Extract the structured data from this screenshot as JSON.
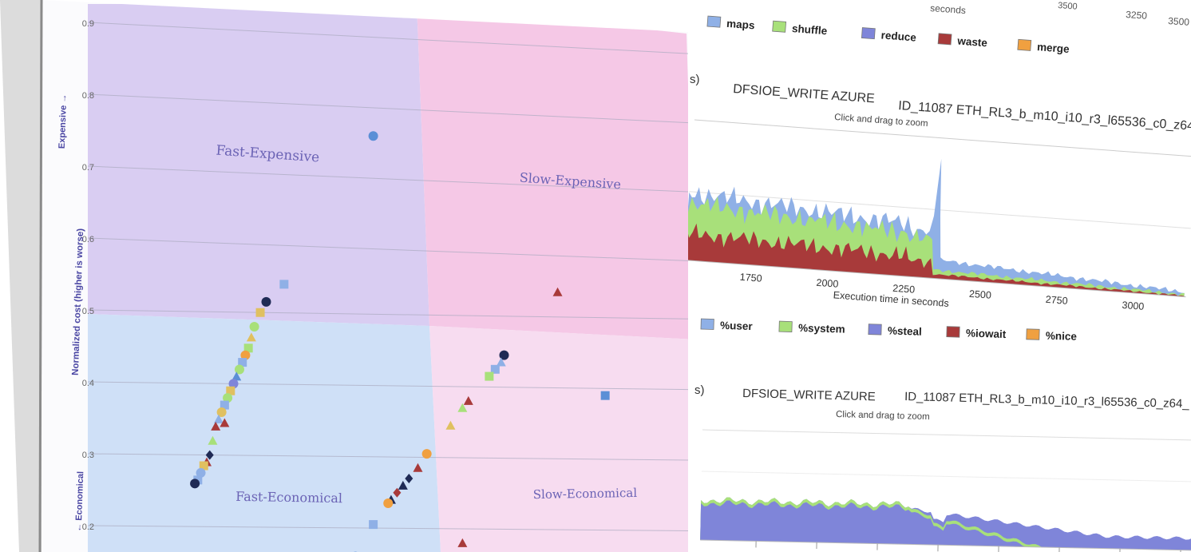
{
  "colors": {
    "fast_expensive_bg": "#d9cdf2",
    "slow_expensive_bg": "#f5c8e6",
    "fast_economical_bg": "#cfe0f7",
    "slow_economical_bg": "#f7dcf0",
    "quadrant_label": "#6b63b5",
    "axis_label": "#4a46a3",
    "maps": "#8fb0e6",
    "shuffle": "#a8e07a",
    "reduce": "#7f85d9",
    "waste": "#a83a3a",
    "merge": "#f0a040",
    "user": "#8fb0e6",
    "system": "#a8e07a",
    "steal": "#7f85d9",
    "iowait": "#a83a3a",
    "nice": "#f0a040"
  },
  "chart_data": [
    {
      "type": "scatter",
      "title": "",
      "ylabel": "← Economical   Normalized cost (higher is worse)   Expensive →",
      "ylabel_economical": "← Economical",
      "ylabel_main": "Normalized cost (higher is worse)",
      "ylabel_expensive": "Expensive →",
      "ylim": [
        0.15,
        0.93
      ],
      "yticks": [
        "0.2",
        "0.3",
        "0.4",
        "0.5",
        "0.6",
        "0.7",
        "0.8",
        "0.9"
      ],
      "quadrants": {
        "fast_expensive": "Fast-Expensive",
        "slow_expensive": "Slow-Expensive",
        "fast_economical": "Fast-Economical",
        "slow_economical": "Slow-Economical"
      },
      "points": [
        {
          "x": 0.48,
          "y": 0.76,
          "shape": "circle",
          "color": "#5b8fd6"
        },
        {
          "x": 0.33,
          "y": 0.54,
          "shape": "square",
          "color": "#8fb0e6"
        },
        {
          "x": 0.3,
          "y": 0.515,
          "shape": "circle",
          "color": "#1f2a55"
        },
        {
          "x": 0.29,
          "y": 0.5,
          "shape": "square",
          "color": "#e0c060"
        },
        {
          "x": 0.28,
          "y": 0.48,
          "shape": "circle",
          "color": "#a8e07a"
        },
        {
          "x": 0.275,
          "y": 0.465,
          "shape": "triangle",
          "color": "#e0c060"
        },
        {
          "x": 0.27,
          "y": 0.45,
          "shape": "square",
          "color": "#a8e07a"
        },
        {
          "x": 0.265,
          "y": 0.44,
          "shape": "circle",
          "color": "#f0a040"
        },
        {
          "x": 0.26,
          "y": 0.43,
          "shape": "square",
          "color": "#8fb0e6"
        },
        {
          "x": 0.255,
          "y": 0.42,
          "shape": "circle",
          "color": "#a8e07a"
        },
        {
          "x": 0.25,
          "y": 0.41,
          "shape": "triangle",
          "color": "#5b8fd6"
        },
        {
          "x": 0.245,
          "y": 0.4,
          "shape": "circle",
          "color": "#7f85d9"
        },
        {
          "x": 0.24,
          "y": 0.39,
          "shape": "square",
          "color": "#e0c060"
        },
        {
          "x": 0.235,
          "y": 0.38,
          "shape": "circle",
          "color": "#a8e07a"
        },
        {
          "x": 0.23,
          "y": 0.37,
          "shape": "square",
          "color": "#8fb0e6"
        },
        {
          "x": 0.225,
          "y": 0.36,
          "shape": "circle",
          "color": "#e0c060"
        },
        {
          "x": 0.22,
          "y": 0.35,
          "shape": "triangle",
          "color": "#8fb0e6"
        },
        {
          "x": 0.23,
          "y": 0.345,
          "shape": "triangle",
          "color": "#a83a3a"
        },
        {
          "x": 0.215,
          "y": 0.34,
          "shape": "triangle",
          "color": "#a83a3a"
        },
        {
          "x": 0.21,
          "y": 0.32,
          "shape": "triangle",
          "color": "#a8e07a"
        },
        {
          "x": 0.205,
          "y": 0.3,
          "shape": "diamond",
          "color": "#1f2a55"
        },
        {
          "x": 0.2,
          "y": 0.29,
          "shape": "triangle",
          "color": "#a83a3a"
        },
        {
          "x": 0.195,
          "y": 0.285,
          "shape": "square",
          "color": "#e0c060"
        },
        {
          "x": 0.19,
          "y": 0.275,
          "shape": "circle",
          "color": "#8fb0e6"
        },
        {
          "x": 0.185,
          "y": 0.265,
          "shape": "square",
          "color": "#8fb0e6"
        },
        {
          "x": 0.18,
          "y": 0.26,
          "shape": "circle",
          "color": "#1f2a55"
        },
        {
          "x": 0.79,
          "y": 0.535,
          "shape": "triangle",
          "color": "#a83a3a"
        },
        {
          "x": 0.7,
          "y": 0.445,
          "shape": "circle",
          "color": "#1f2a55"
        },
        {
          "x": 0.695,
          "y": 0.435,
          "shape": "triangle",
          "color": "#8fb0e6"
        },
        {
          "x": 0.685,
          "y": 0.425,
          "shape": "square",
          "color": "#8fb0e6"
        },
        {
          "x": 0.675,
          "y": 0.415,
          "shape": "square",
          "color": "#a8e07a"
        },
        {
          "x": 0.64,
          "y": 0.38,
          "shape": "triangle",
          "color": "#a83a3a"
        },
        {
          "x": 0.63,
          "y": 0.37,
          "shape": "triangle",
          "color": "#a8e07a"
        },
        {
          "x": 0.61,
          "y": 0.345,
          "shape": "triangle",
          "color": "#e0c060"
        },
        {
          "x": 0.57,
          "y": 0.305,
          "shape": "circle",
          "color": "#f0a040"
        },
        {
          "x": 0.555,
          "y": 0.285,
          "shape": "triangle",
          "color": "#a83a3a"
        },
        {
          "x": 0.54,
          "y": 0.27,
          "shape": "diamond",
          "color": "#1f2a55"
        },
        {
          "x": 0.53,
          "y": 0.26,
          "shape": "triangle",
          "color": "#1f2a55"
        },
        {
          "x": 0.52,
          "y": 0.25,
          "shape": "diamond",
          "color": "#a83a3a"
        },
        {
          "x": 0.51,
          "y": 0.24,
          "shape": "triangle",
          "color": "#1f2a55"
        },
        {
          "x": 0.505,
          "y": 0.235,
          "shape": "circle",
          "color": "#f0a040"
        },
        {
          "x": 0.48,
          "y": 0.205,
          "shape": "square",
          "color": "#8fb0e6"
        },
        {
          "x": 0.63,
          "y": 0.18,
          "shape": "triangle",
          "color": "#a83a3a"
        },
        {
          "x": 0.45,
          "y": 0.16,
          "shape": "circle",
          "color": "#5b8fd6"
        },
        {
          "x": 0.87,
          "y": 0.39,
          "shape": "square",
          "color": "#5b8fd6"
        }
      ]
    },
    {
      "type": "area",
      "title": "DFSIOE_WRITE AZURE",
      "run_id": "ID_11087 ETH_RL3_b_m10_i10_r3_l65536_c0_z64_",
      "subtitle": "Click and drag to zoom",
      "xlabel": "Execution time in seconds",
      "xlabel_top_fragment": "seconds",
      "xticks": [
        "1750",
        "2000",
        "2250",
        "2500",
        "2750",
        "3000",
        "3250",
        "3500"
      ],
      "top_ticks": [
        "3250",
        "3500"
      ],
      "top_fragment": "3500",
      "left_fragment": "s)",
      "legend": [
        "maps",
        "shuffle",
        "reduce",
        "waste",
        "merge"
      ]
    },
    {
      "type": "area",
      "title": "DFSIOE_WRITE AZURE",
      "run_id": "ID_11087 ETH_RL3_b_m10_i10_r3_l65536_c0_z64_",
      "subtitle": "Click and drag to zoom",
      "left_fragment": "s)",
      "legend": [
        "%user",
        "%system",
        "%steal",
        "%iowait",
        "%nice"
      ]
    }
  ]
}
